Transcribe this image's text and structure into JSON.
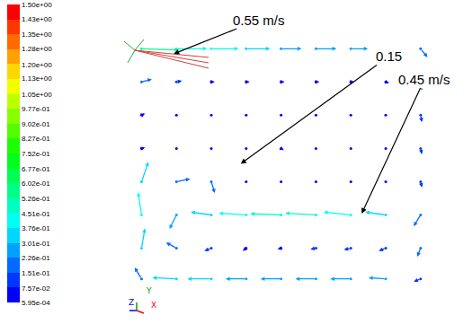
{
  "chart_data": {
    "type": "vector",
    "tick_labels": false,
    "xlim": [
      0,
      1
    ],
    "ylim": [
      0,
      1
    ],
    "x": [
      0.05,
      0.1625,
      0.275,
      0.3875,
      0.5,
      0.6125,
      0.725,
      0.8375,
      0.95
    ],
    "y": [
      0.95,
      0.82,
      0.69,
      0.56,
      0.43,
      0.3,
      0.17,
      0.05
    ],
    "u": [
      [
        0.55,
        0.45,
        0.4,
        0.35,
        0.3,
        0.3,
        0.25,
        0.2,
        0.1
      ],
      [
        0.15,
        0.08,
        0.05,
        0.05,
        0.05,
        0.05,
        0.05,
        0.05,
        0.02
      ],
      [
        0.05,
        0.03,
        -0.02,
        0.02,
        0.03,
        -0.02,
        0.02,
        0.03,
        0.02
      ],
      [
        0.05,
        -0.02,
        0.03,
        -0.03,
        0.04,
        0.02,
        -0.03,
        0.02,
        0.02
      ],
      [
        0.1,
        0.2,
        0.05,
        0.02,
        -0.03,
        0.02,
        0.03,
        -0.02,
        0.02
      ],
      [
        -0.05,
        -0.1,
        -0.3,
        -0.4,
        -0.45,
        -0.45,
        -0.4,
        -0.3,
        -0.1
      ],
      [
        0.05,
        -0.15,
        -0.1,
        -0.05,
        -0.05,
        -0.08,
        -0.1,
        -0.1,
        -0.05
      ],
      [
        -0.1,
        -0.35,
        -0.35,
        -0.3,
        -0.3,
        -0.3,
        -0.3,
        -0.25,
        -0.1
      ]
    ],
    "v": [
      [
        -0.02,
        0,
        0,
        0,
        0,
        0,
        0,
        -0.02,
        -0.15
      ],
      [
        0.05,
        0.02,
        0,
        0,
        0,
        0,
        0,
        -0.02,
        -0.15
      ],
      [
        0.03,
        -0.02,
        0.02,
        -0.03,
        0.01,
        0.02,
        -0.02,
        -0.03,
        -0.12
      ],
      [
        0.02,
        0.03,
        -0.02,
        0.02,
        -0.03,
        0.02,
        0.03,
        -0.02,
        -0.1
      ],
      [
        0.35,
        0.05,
        -0.2,
        0.02,
        0.01,
        -0.02,
        0.02,
        -0.03,
        -0.1
      ],
      [
        0.4,
        -0.25,
        0.05,
        0.03,
        0.02,
        0.03,
        0.05,
        0.05,
        -0.2
      ],
      [
        0.35,
        0.1,
        -0.05,
        -0.05,
        -0.02,
        -0.02,
        -0.03,
        -0.05,
        -0.15
      ],
      [
        0.2,
        0.02,
        0,
        0,
        0,
        0,
        0,
        0.02,
        -0.05
      ]
    ],
    "colorbar": {
      "range": [
        0.000595,
        1.5
      ],
      "ticks": [
        {
          "value": 1.5,
          "label": "1.50e+00"
        },
        {
          "value": 1.43,
          "label": "1.43e+00"
        },
        {
          "value": 1.35,
          "label": "1.35e+00"
        },
        {
          "value": 1.28,
          "label": "1.28e+00"
        },
        {
          "value": 1.2,
          "label": "1.20e+00"
        },
        {
          "value": 1.13,
          "label": "1.13e+00"
        },
        {
          "value": 1.05,
          "label": "1.05e+00"
        },
        {
          "value": 0.977,
          "label": "9.77e-01"
        },
        {
          "value": 0.902,
          "label": "9.02e-01"
        },
        {
          "value": 0.827,
          "label": "8.27e-01"
        },
        {
          "value": 0.752,
          "label": "7.52e-01"
        },
        {
          "value": 0.677,
          "label": "6.77e-01"
        },
        {
          "value": 0.602,
          "label": "6.02e-01"
        },
        {
          "value": 0.526,
          "label": "5.26e-01"
        },
        {
          "value": 0.451,
          "label": "4.51e-01"
        },
        {
          "value": 0.376,
          "label": "3.76e-01"
        },
        {
          "value": 0.301,
          "label": "3.01e-01"
        },
        {
          "value": 0.226,
          "label": "2.26e-01"
        },
        {
          "value": 0.151,
          "label": "1.51e-01"
        },
        {
          "value": 0.0757,
          "label": "7.57e-02"
        },
        {
          "value": 0.000595,
          "label": "5.95e-04"
        }
      ]
    },
    "annotations": [
      {
        "text": "0.55 m/s",
        "x": 0.154,
        "y": 0.93
      },
      {
        "text": "0.15",
        "x": 0.37,
        "y": 0.5
      },
      {
        "text": "0.45 m/s",
        "x": 0.76,
        "y": 0.305
      }
    ],
    "triad": [
      "Z",
      "Y",
      "X"
    ]
  }
}
